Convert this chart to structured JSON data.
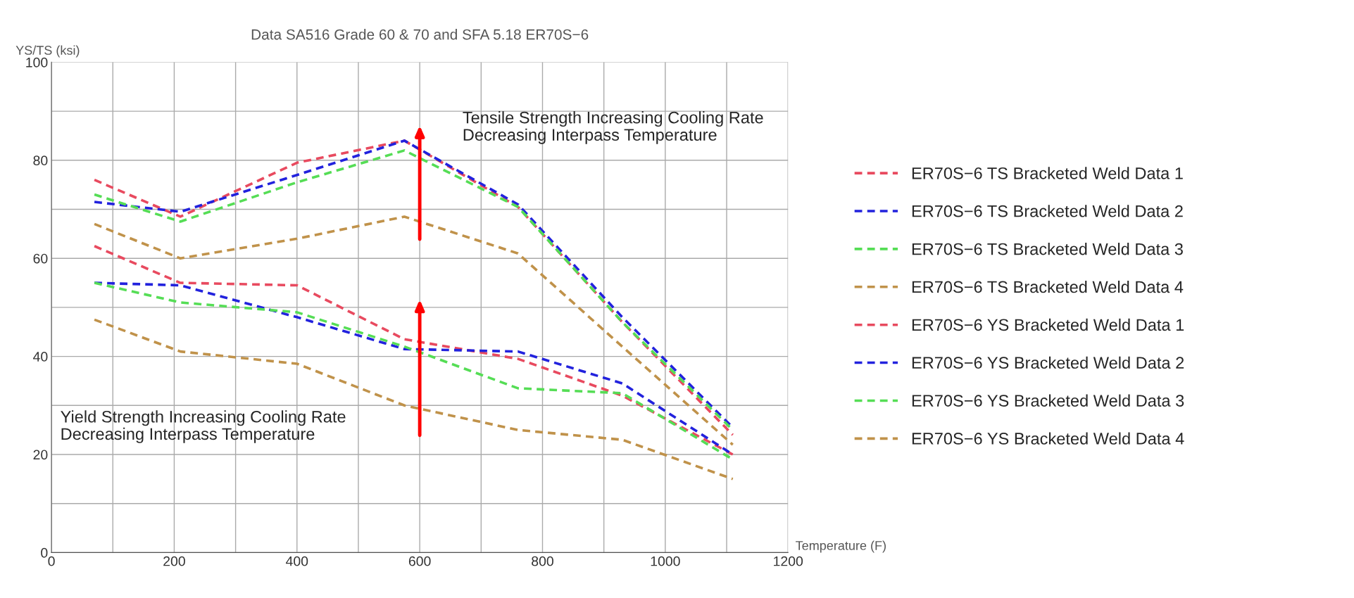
{
  "chart_data": {
    "type": "line",
    "title": "Data SA516 Grade 60 & 70 and SFA 5.18 ER70S−6",
    "xlabel": "Temperature (F)",
    "ylabel": "YS/TS (ksi)",
    "x": [
      70,
      210,
      400,
      575,
      760,
      930,
      1110
    ],
    "series": [
      {
        "name": "ER70S−6 TS Bracketed Weld Data 1",
        "color": "#e84a5f",
        "values": [
          76,
          68.5,
          79.5,
          84,
          70.5,
          47,
          24
        ]
      },
      {
        "name": "ER70S−6 TS Bracketed Weld Data 2",
        "color": "#2222dd",
        "values": [
          71.5,
          69.5,
          77,
          84,
          71,
          48,
          25.5
        ]
      },
      {
        "name": "ER70S−6 TS Bracketed Weld Data 3",
        "color": "#55dd55",
        "values": [
          73,
          67.5,
          75.5,
          82,
          70.5,
          47,
          25
        ]
      },
      {
        "name": "ER70S−6 TS Bracketed Weld Data 4",
        "color": "#c0924a",
        "values": [
          67,
          60,
          64,
          68.5,
          61,
          42,
          22
        ]
      },
      {
        "name": "ER70S−6 YS Bracketed Weld Data 1",
        "color": "#e84a5f",
        "values": [
          62.5,
          55,
          54.5,
          43.5,
          39.5,
          32,
          20
        ]
      },
      {
        "name": "ER70S−6 YS Bracketed Weld Data 2",
        "color": "#2222dd",
        "values": [
          55,
          54.5,
          48,
          41.5,
          41,
          34.5,
          20
        ]
      },
      {
        "name": "ER70S−6 YS Bracketed Weld Data 3",
        "color": "#55dd55",
        "values": [
          55,
          51,
          49,
          42,
          33.5,
          32.5,
          19
        ]
      },
      {
        "name": "ER70S−6 YS Bracketed Weld Data 4",
        "color": "#c0924a",
        "values": [
          47.5,
          41,
          38.5,
          30,
          25,
          23,
          15
        ]
      }
    ],
    "xlim": [
      0,
      1200
    ],
    "ylim": [
      0,
      100
    ],
    "xticks": [
      0,
      {
        "value": 100,
        "label": null
      },
      200,
      {
        "value": 300,
        "label": null
      },
      400,
      {
        "value": 500,
        "label": null
      },
      600,
      {
        "value": 700,
        "label": null
      },
      800,
      {
        "value": 900,
        "label": null
      },
      1000,
      {
        "value": 1100,
        "label": null
      },
      1200
    ],
    "yticks": [
      0,
      {
        "value": 10,
        "label": null
      },
      20,
      {
        "value": 30,
        "label": null
      },
      40,
      {
        "value": 50,
        "label": null
      },
      60,
      {
        "value": 70,
        "label": null
      },
      80,
      {
        "value": 90,
        "label": null
      },
      100
    ],
    "annotations": [
      "Tensile Strength Increasing Cooling Rate\nDecreasing Interpass Temperature",
      "Yield Strength Increasing Cooling Rate\nDecreasing Interpass Temperature"
    ],
    "grid": true,
    "legend": "right",
    "line_style": "dashed",
    "marker": "none"
  }
}
